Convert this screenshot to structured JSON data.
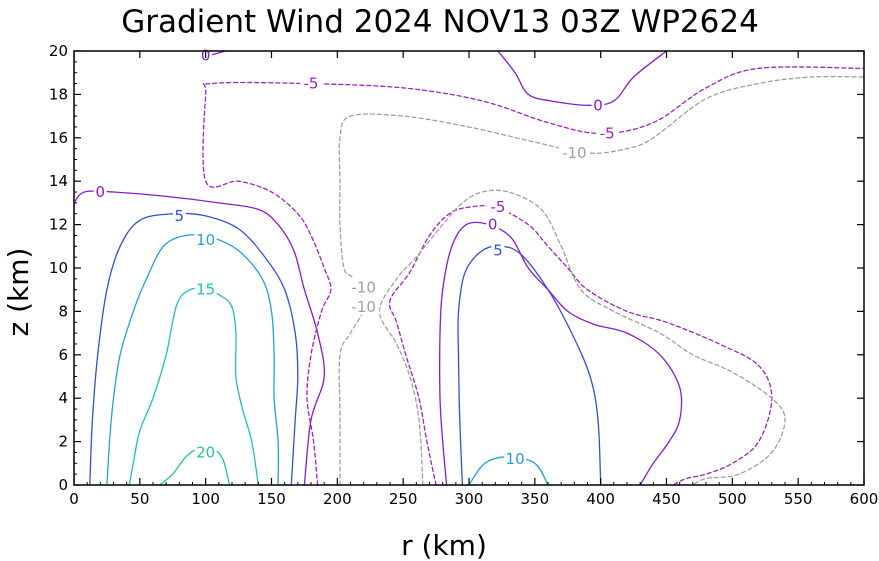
{
  "chart_data": {
    "type": "contour",
    "title": "Gradient Wind 2024 NOV13 03Z  WP2624",
    "xlabel": "r (km)",
    "ylabel": "z (km)",
    "xlim": [
      0,
      600
    ],
    "ylim": [
      0,
      20
    ],
    "xticks": [
      0,
      50,
      100,
      150,
      200,
      250,
      300,
      350,
      400,
      450,
      500,
      550,
      600
    ],
    "yticks": [
      0,
      2,
      4,
      6,
      8,
      10,
      12,
      14,
      16,
      18,
      20
    ],
    "grid": false,
    "legend": "none",
    "levels": [
      {
        "level": -10,
        "label": "-10",
        "color": "#a0a0a0",
        "style": "dashed"
      },
      {
        "level": -5,
        "label": "-5",
        "color": "#a020c0",
        "style": "dashed"
      },
      {
        "level": 0,
        "label": "0",
        "color": "#8a1ad0",
        "style": "solid"
      },
      {
        "level": 5,
        "label": "5",
        "color": "#3050d8",
        "style": "solid"
      },
      {
        "level": 10,
        "label": "10",
        "color": "#20a0e0",
        "style": "solid"
      },
      {
        "level": 15,
        "label": "15",
        "color": "#20c0b8",
        "style": "solid"
      },
      {
        "level": 20,
        "label": "20",
        "color": "#20c898",
        "style": "solid"
      }
    ],
    "contours": [
      {
        "level": 20,
        "points": [
          [
            65,
            0
          ],
          [
            75,
            0.5
          ],
          [
            85,
            1.3
          ],
          [
            95,
            1.7
          ],
          [
            105,
            1.7
          ],
          [
            113,
            1.2
          ],
          [
            118,
            0
          ]
        ]
      },
      {
        "level": 15,
        "points": [
          [
            42,
            0
          ],
          [
            45,
            1
          ],
          [
            50,
            2.5
          ],
          [
            60,
            4
          ],
          [
            70,
            6
          ],
          [
            78,
            8.3
          ],
          [
            88,
            9
          ],
          [
            100,
            9
          ],
          [
            112,
            8.7
          ],
          [
            120,
            8.2
          ],
          [
            123,
            7
          ],
          [
            123,
            5
          ],
          [
            128,
            3.5
          ],
          [
            135,
            2
          ],
          [
            140,
            0
          ]
        ]
      },
      {
        "level": 10,
        "points": [
          [
            25,
            0
          ],
          [
            27,
            2
          ],
          [
            30,
            4
          ],
          [
            35,
            6
          ],
          [
            45,
            8
          ],
          [
            55,
            9.5
          ],
          [
            68,
            11
          ],
          [
            85,
            11.5
          ],
          [
            105,
            11.4
          ],
          [
            125,
            10.8
          ],
          [
            143,
            9.5
          ],
          [
            150,
            8
          ],
          [
            152,
            6
          ],
          [
            152,
            4
          ],
          [
            155,
            2
          ],
          [
            155,
            0
          ]
        ]
      },
      {
        "level": 10,
        "points": [
          [
            300,
            0
          ],
          [
            312,
            1
          ],
          [
            330,
            1.3
          ],
          [
            350,
            1
          ],
          [
            360,
            0
          ]
        ]
      },
      {
        "level": 5,
        "points": [
          [
            12,
            0
          ],
          [
            14,
            3
          ],
          [
            18,
            6
          ],
          [
            25,
            9
          ],
          [
            35,
            11
          ],
          [
            50,
            12.2
          ],
          [
            75,
            12.5
          ],
          [
            100,
            12.4
          ],
          [
            125,
            11.8
          ],
          [
            145,
            10.5
          ],
          [
            160,
            9
          ],
          [
            168,
            7
          ],
          [
            170,
            5
          ],
          [
            168,
            3
          ],
          [
            165,
            0
          ]
        ]
      },
      {
        "level": 5,
        "points": [
          [
            295,
            0
          ],
          [
            293,
            3
          ],
          [
            292,
            6
          ],
          [
            292,
            8
          ],
          [
            297,
            9.8
          ],
          [
            310,
            10.8
          ],
          [
            325,
            11
          ],
          [
            340,
            10.6
          ],
          [
            360,
            9
          ],
          [
            378,
            7
          ],
          [
            392,
            5
          ],
          [
            398,
            3
          ],
          [
            400,
            0
          ]
        ]
      },
      {
        "level": 0,
        "points": [
          [
            0,
            13
          ],
          [
            8,
            13.5
          ],
          [
            30,
            13.5
          ],
          [
            70,
            13.3
          ],
          [
            110,
            13
          ],
          [
            140,
            12.7
          ],
          [
            155,
            12
          ],
          [
            167,
            10.8
          ],
          [
            175,
            9
          ],
          [
            185,
            7
          ],
          [
            190,
            5
          ],
          [
            180,
            3
          ],
          [
            175,
            0
          ]
        ]
      },
      {
        "level": 0,
        "points": [
          [
            283,
            0
          ],
          [
            280,
            2
          ],
          [
            278,
            4
          ],
          [
            278,
            7
          ],
          [
            280,
            9
          ],
          [
            287,
            11
          ],
          [
            298,
            12
          ],
          [
            315,
            12
          ],
          [
            332,
            11.4
          ],
          [
            345,
            10
          ],
          [
            360,
            9
          ],
          [
            375,
            8
          ],
          [
            395,
            7.4
          ],
          [
            420,
            7
          ],
          [
            445,
            6
          ],
          [
            460,
            4.5
          ],
          [
            460,
            3
          ],
          [
            452,
            2
          ],
          [
            440,
            1
          ],
          [
            430,
            0
          ]
        ]
      },
      {
        "level": 0,
        "points": [
          [
            97,
            20
          ],
          [
            102,
            19.8
          ],
          [
            115,
            20
          ]
        ]
      },
      {
        "level": 0,
        "points": [
          [
            322,
            20
          ],
          [
            335,
            19
          ],
          [
            345,
            18
          ],
          [
            362,
            17.7
          ],
          [
            390,
            17.5
          ],
          [
            410,
            17.7
          ],
          [
            425,
            18.8
          ],
          [
            450,
            20
          ]
        ]
      },
      {
        "level": -5,
        "points": [
          [
            185,
            0
          ],
          [
            182,
            2
          ],
          [
            177,
            4
          ],
          [
            180,
            6
          ],
          [
            188,
            8
          ],
          [
            195,
            9
          ],
          [
            190,
            10
          ],
          [
            180,
            11.5
          ],
          [
            170,
            12.5
          ],
          [
            150,
            13.5
          ],
          [
            125,
            14
          ],
          [
            100,
            14
          ],
          [
            100,
            18
          ],
          [
            105,
            18.5
          ],
          [
            175,
            18.5
          ],
          [
            250,
            18.3
          ],
          [
            310,
            17.7
          ],
          [
            360,
            16.7
          ],
          [
            400,
            16.2
          ],
          [
            440,
            16.7
          ],
          [
            480,
            18.3
          ],
          [
            520,
            19.2
          ],
          [
            600,
            19.2
          ]
        ]
      },
      {
        "level": -5,
        "points": [
          [
            275,
            0
          ],
          [
            268,
            2
          ],
          [
            262,
            4
          ],
          [
            252,
            6
          ],
          [
            245,
            7.5
          ],
          [
            240,
            8.5
          ],
          [
            255,
            9.8
          ],
          [
            270,
            11.5
          ],
          [
            285,
            12.5
          ],
          [
            300,
            12.8
          ],
          [
            320,
            12.8
          ],
          [
            345,
            12
          ],
          [
            360,
            11
          ],
          [
            375,
            10
          ],
          [
            390,
            9
          ],
          [
            420,
            8
          ],
          [
            450,
            7.5
          ],
          [
            490,
            6.5
          ],
          [
            520,
            5.5
          ],
          [
            530,
            4
          ],
          [
            520,
            2
          ],
          [
            500,
            1
          ],
          [
            480,
            0.5
          ],
          [
            465,
            0.3
          ],
          [
            455,
            0
          ]
        ]
      },
      {
        "level": -10,
        "points": [
          [
            202,
            0
          ],
          [
            202,
            3
          ],
          [
            202,
            6
          ],
          [
            210,
            7
          ],
          [
            220,
            8.2
          ],
          [
            212,
            9.5
          ],
          [
            205,
            10
          ],
          [
            202,
            12
          ],
          [
            202,
            14
          ],
          [
            202,
            16
          ],
          [
            210,
            17
          ],
          [
            250,
            17
          ],
          [
            300,
            16.5
          ],
          [
            350,
            15.8
          ],
          [
            390,
            15.3
          ],
          [
            420,
            15.5
          ],
          [
            440,
            16
          ],
          [
            480,
            17.8
          ],
          [
            520,
            18.5
          ],
          [
            560,
            18.8
          ],
          [
            600,
            18.8
          ]
        ]
      },
      {
        "level": -10,
        "points": [
          [
            265,
            0
          ],
          [
            262,
            3
          ],
          [
            255,
            5
          ],
          [
            245,
            6.5
          ],
          [
            232,
            8
          ],
          [
            245,
            9.5
          ],
          [
            260,
            10.5
          ],
          [
            280,
            12
          ],
          [
            295,
            13
          ],
          [
            310,
            13.5
          ],
          [
            330,
            13.5
          ],
          [
            355,
            12.7
          ],
          [
            370,
            11
          ],
          [
            385,
            9
          ],
          [
            410,
            8
          ],
          [
            445,
            7
          ],
          [
            470,
            6
          ],
          [
            500,
            5.2
          ],
          [
            530,
            4
          ],
          [
            540,
            3
          ],
          [
            530,
            1.5
          ],
          [
            505,
            0.5
          ],
          [
            480,
            0.3
          ],
          [
            470,
            0
          ]
        ]
      }
    ],
    "labels": [
      {
        "level": 20,
        "text": "20",
        "x": 100,
        "y": 1.5
      },
      {
        "level": 15,
        "text": "15",
        "x": 100,
        "y": 9
      },
      {
        "level": 10,
        "text": "10",
        "x": 100,
        "y": 11.3
      },
      {
        "level": 10,
        "text": "10",
        "x": 335,
        "y": 1.2
      },
      {
        "level": 5,
        "text": "5",
        "x": 80,
        "y": 12.4
      },
      {
        "level": 5,
        "text": "5",
        "x": 322,
        "y": 10.8
      },
      {
        "level": 0,
        "text": "0",
        "x": 20,
        "y": 13.5
      },
      {
        "level": 0,
        "text": "0",
        "x": 318,
        "y": 12
      },
      {
        "level": 0,
        "text": "0",
        "x": 100,
        "y": 19.8
      },
      {
        "level": 0,
        "text": "0",
        "x": 398,
        "y": 17.5
      },
      {
        "level": -5,
        "text": "-5",
        "x": 180,
        "y": 18.5
      },
      {
        "level": -5,
        "text": "-5",
        "x": 405,
        "y": 16.2
      },
      {
        "level": -5,
        "text": "-5",
        "x": 322,
        "y": 12.8
      },
      {
        "level": -10,
        "text": "-10",
        "x": 220,
        "y": 8.2
      },
      {
        "level": -10,
        "text": "-10",
        "x": 220,
        "y": 9.1
      },
      {
        "level": -10,
        "text": "-10",
        "x": 380,
        "y": 15.3
      }
    ]
  }
}
